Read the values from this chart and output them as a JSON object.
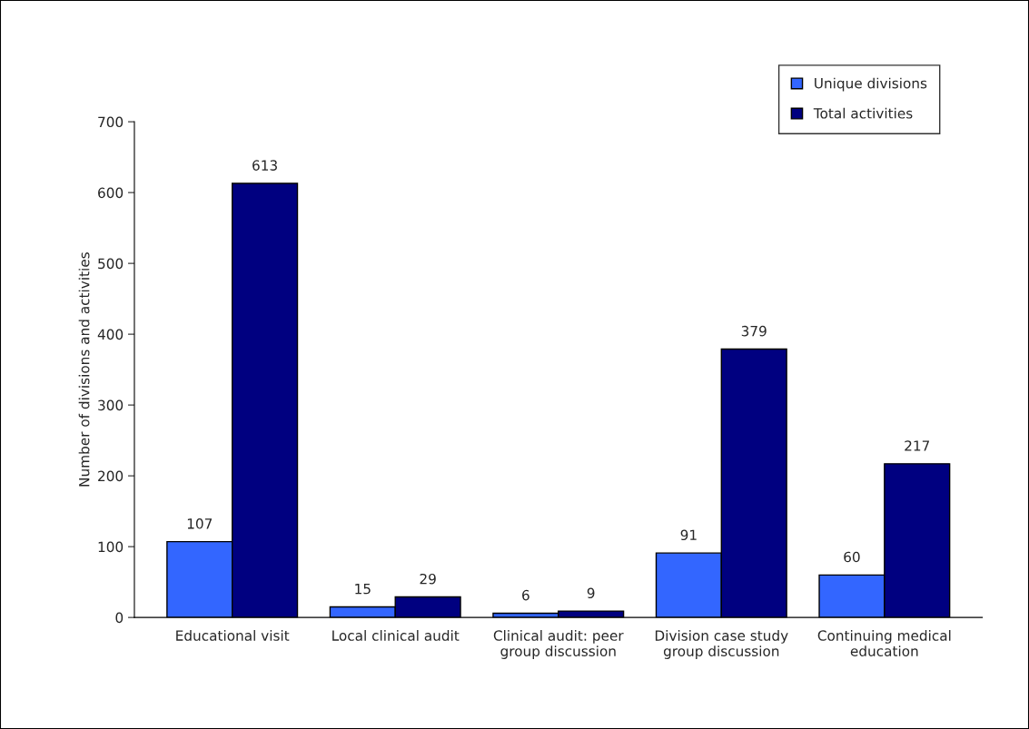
{
  "chart_data": {
    "type": "bar",
    "ylabel": "Number of divisions and activities",
    "categories": [
      "Educational visit",
      "Local clinical audit",
      "Clinical audit: peer group discussion",
      "Division case study group discussion",
      "Continuing medical education"
    ],
    "series": [
      {
        "name": "Unique divisions",
        "color": "#3366ff",
        "values": [
          107,
          15,
          6,
          91,
          60
        ]
      },
      {
        "name": "Total activities",
        "color": "#000080",
        "values": [
          613,
          29,
          9,
          379,
          217
        ]
      }
    ],
    "ylim": [
      0,
      700
    ],
    "yticks": [
      0,
      100,
      200,
      300,
      400,
      500,
      600,
      700
    ],
    "data_labels": true,
    "legend": "top right",
    "grid": false
  }
}
